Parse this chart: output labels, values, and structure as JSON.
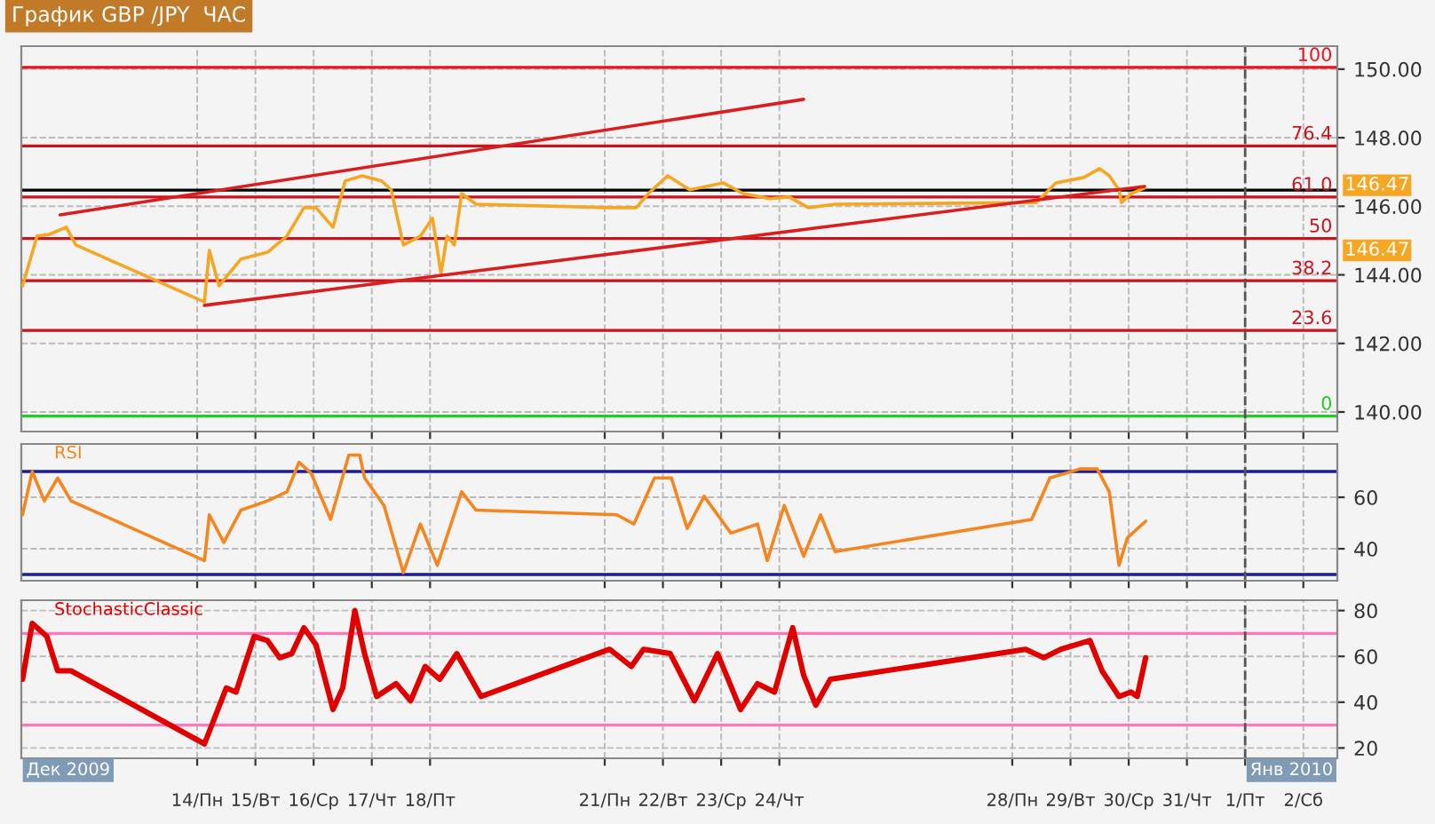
{
  "chart_data": [
    {
      "type": "line",
      "title": "График GBP /JPY  ЧАС",
      "xlim": [
        "2009-12-10T23:30",
        "2010-01-02T14:00"
      ],
      "ylim": [
        139.43,
        150.67
      ],
      "tick_labels": "y",
      "grid": true,
      "marker": "none",
      "line_style": "solid",
      "xticks": [
        "2009-12-14",
        "2009-12-15",
        "2009-12-16",
        "2009-12-17",
        "2009-12-18",
        "2009-12-21",
        "2009-12-22",
        "2009-12-23",
        "2009-12-24",
        "2009-12-28",
        "2009-12-29",
        "2009-12-30",
        "2009-12-31",
        "2010-01-01",
        "2010-01-02"
      ],
      "yticks": [
        {
          "value": 140,
          "label": "140.00"
        },
        {
          "value": 142,
          "label": "142.00"
        },
        {
          "value": 144,
          "label": "144.00"
        },
        {
          "value": 146,
          "label": "146.00"
        },
        {
          "value": 148,
          "label": "148.00"
        },
        {
          "value": 150,
          "label": "150.00"
        }
      ],
      "series": [
        {
          "color": "#f5a623",
          "x": [
            "2009-12-11T00:00",
            "2009-12-11T06:00",
            "2009-12-11T11:00",
            "2009-12-11T18:00",
            "2009-12-11T22:00",
            "2009-12-14T03:00",
            "2009-12-14T05:00",
            "2009-12-14T09:00",
            "2009-12-14T18:00",
            "2009-12-15T05:00",
            "2009-12-15T13:00",
            "2009-12-15T20:00",
            "2009-12-16T01:00",
            "2009-12-16T08:00",
            "2009-12-16T13:00",
            "2009-12-16T20:00",
            "2009-12-17T04:00",
            "2009-12-17T08:00",
            "2009-12-17T13:00",
            "2009-12-17T20:00",
            "2009-12-18T01:00",
            "2009-12-18T04:30",
            "2009-12-18T07:00",
            "2009-12-18T10:00",
            "2009-12-18T13:00",
            "2009-12-18T19:00",
            "2009-12-21T02:00",
            "2009-12-21T13:00",
            "2009-12-21T18:00",
            "2009-12-22T02:00",
            "2009-12-22T11:00",
            "2009-12-23T01:00",
            "2009-12-23T09:00",
            "2009-12-23T20:00",
            "2009-12-24T04:00",
            "2009-12-24T12:00",
            "2009-12-24T23:00",
            "2009-12-28T10:00",
            "2009-12-28T18:00",
            "2009-12-29T05:30",
            "2009-12-29T12:00",
            "2009-12-29T16:00",
            "2009-12-29T20:00",
            "2009-12-29T21:00",
            "2009-12-30T01:00",
            "2009-12-30T06:30"
          ],
          "values": [
            143.68,
            145.13,
            145.18,
            145.39,
            144.87,
            143.21,
            144.72,
            143.68,
            144.46,
            144.66,
            145.13,
            145.96,
            145.96,
            145.39,
            146.74,
            146.89,
            146.74,
            146.48,
            144.87,
            145.13,
            145.65,
            144.04,
            145.13,
            144.87,
            146.37,
            146.06,
            145.96,
            145.96,
            146.37,
            146.89,
            146.48,
            146.68,
            146.37,
            146.22,
            146.27,
            145.96,
            146.06,
            146.11,
            146.68,
            146.84,
            147.1,
            146.89,
            146.48,
            146.11,
            146.37,
            146.53
          ]
        },
        {
          "type": "line",
          "color": "#d81e1e",
          "x": [
            "2009-12-11T15:30",
            "2009-12-24T10:00"
          ],
          "values": [
            145.75,
            149.12
          ]
        },
        {
          "type": "line",
          "color": "#d81e1e",
          "x": [
            "2009-12-14T03:00",
            "2009-12-30T06:30"
          ],
          "values": [
            143.11,
            146.58
          ]
        }
      ],
      "ref_lines": [
        {
          "axis": "y",
          "value": 150.05,
          "color": "#e8141e"
        },
        {
          "axis": "y",
          "value": 147.76,
          "color": "#c8141e"
        },
        {
          "axis": "y",
          "value": 146.27,
          "color": "#c8141e"
        },
        {
          "axis": "y",
          "value": 145.06,
          "color": "#c8141e"
        },
        {
          "axis": "y",
          "value": 143.83,
          "color": "#c8141e"
        },
        {
          "axis": "y",
          "value": 142.38,
          "color": "#c8141e"
        },
        {
          "axis": "y",
          "value": 139.88,
          "color": "#22cc22"
        },
        {
          "axis": "y",
          "value": 146.47,
          "label": "146.47",
          "color": "#000000"
        },
        {
          "axis": "x",
          "value": "2010-01-01",
          "color": "#555555",
          "line_style": "dashed"
        }
      ],
      "annotations": [
        "100",
        "76.4",
        "61.0",
        "50",
        "38.2",
        "23.6",
        "0",
        "146.47"
      ]
    },
    {
      "type": "line",
      "xlim": [
        "2009-12-10T23:30",
        "2010-01-02T14:00"
      ],
      "ylim": [
        27.6,
        80.7
      ],
      "tick_labels": "y",
      "grid": true,
      "marker": "none",
      "line_style": "solid",
      "xticks": [
        "2009-12-14",
        "2009-12-15",
        "2009-12-16",
        "2009-12-17",
        "2009-12-18",
        "2009-12-21",
        "2009-12-22",
        "2009-12-23",
        "2009-12-24",
        "2009-12-28",
        "2009-12-29",
        "2009-12-30",
        "2009-12-31",
        "2010-01-01",
        "2010-01-02"
      ],
      "yticks": [
        40,
        60
      ],
      "series": [
        {
          "name": "RSI",
          "color": "#f5861f",
          "x": [
            "2009-12-11T00:00",
            "2009-12-11T04:00",
            "2009-12-11T09:00",
            "2009-12-11T14:30",
            "2009-12-11T20:00",
            "2009-12-14T03:00",
            "2009-12-14T05:00",
            "2009-12-14T11:00",
            "2009-12-14T18:00",
            "2009-12-15T05:00",
            "2009-12-15T13:00",
            "2009-12-15T18:00",
            "2009-12-15T23:00",
            "2009-12-16T07:00",
            "2009-12-16T14:30",
            "2009-12-16T19:00",
            "2009-12-16T21:00",
            "2009-12-17T05:00",
            "2009-12-17T13:00",
            "2009-12-17T20:00",
            "2009-12-18T03:00",
            "2009-12-18T13:00",
            "2009-12-18T19:00",
            "2009-12-21T05:00",
            "2009-12-21T12:00",
            "2009-12-21T20:30",
            "2009-12-22T03:30",
            "2009-12-22T10:00",
            "2009-12-22T17:00",
            "2009-12-23T04:00",
            "2009-12-23T15:00",
            "2009-12-23T19:00",
            "2009-12-24T02:00",
            "2009-12-24T10:00",
            "2009-12-24T17:00",
            "2009-12-24T23:00",
            "2009-12-28T08:00",
            "2009-12-28T15:30",
            "2009-12-29T04:00",
            "2009-12-29T11:00",
            "2009-12-29T16:00",
            "2009-12-29T20:00",
            "2009-12-29T23:30",
            "2009-12-30T07:00"
          ],
          "values": [
            53.2,
            70,
            58.6,
            67.5,
            58.6,
            35.4,
            53.2,
            42.5,
            55,
            58.6,
            62.1,
            73.6,
            69.3,
            51.4,
            76.4,
            76.4,
            67.5,
            56.8,
            30.7,
            49.6,
            33.6,
            62.1,
            55,
            53.2,
            49.6,
            67.5,
            67.5,
            47.9,
            60.4,
            46.1,
            49.6,
            35.4,
            56.8,
            37.1,
            53.2,
            38.9,
            51.4,
            67.5,
            71,
            71,
            62.1,
            33.6,
            44.3,
            50.7
          ]
        }
      ],
      "ref_lines": [
        {
          "axis": "y",
          "value": 70,
          "color": "#1c1c9c"
        },
        {
          "axis": "y",
          "value": 30,
          "color": "#1c1c9c"
        },
        {
          "axis": "x",
          "value": "2010-01-01",
          "color": "#555555",
          "line_style": "dashed"
        }
      ]
    },
    {
      "type": "line",
      "xlim": [
        "2009-12-10T23:30",
        "2010-01-02T14:00"
      ],
      "ylim": [
        15.5,
        84.5
      ],
      "grid": true,
      "marker": "none",
      "line_style": "solid",
      "xticks": [
        {
          "value": "2009-12-14",
          "label": "14/Пн"
        },
        {
          "value": "2009-12-15",
          "label": "15/Вт"
        },
        {
          "value": "2009-12-16",
          "label": "16/Ср"
        },
        {
          "value": "2009-12-17",
          "label": "17/Чт"
        },
        {
          "value": "2009-12-18",
          "label": "18/Пт"
        },
        {
          "value": "2009-12-21",
          "label": "21/Пн"
        },
        {
          "value": "2009-12-22",
          "label": "22/Вт"
        },
        {
          "value": "2009-12-23",
          "label": "23/Ср"
        },
        {
          "value": "2009-12-24",
          "label": "24/Чт"
        },
        {
          "value": "2009-12-28",
          "label": "28/Пн"
        },
        {
          "value": "2009-12-29",
          "label": "29/Вт"
        },
        {
          "value": "2009-12-30",
          "label": "30/Ср"
        },
        {
          "value": "2009-12-31",
          "label": "31/Чт"
        },
        {
          "value": "2010-01-01",
          "label": "1/Пт"
        },
        {
          "value": "2010-01-02",
          "label": "2/Сб"
        }
      ],
      "yticks": [
        20,
        40,
        60,
        80
      ],
      "series": [
        {
          "name": "StochasticClassic",
          "color": "#e00000",
          "x": [
            "2009-12-11T00:00",
            "2009-12-11T04:00",
            "2009-12-11T10:00",
            "2009-12-11T14:30",
            "2009-12-11T20:00",
            "2009-12-14T03:00",
            "2009-12-14T12:00",
            "2009-12-14T16:00",
            "2009-12-14T23:30",
            "2009-12-15T05:00",
            "2009-12-15T10:00",
            "2009-12-15T15:00",
            "2009-12-15T20:00",
            "2009-12-16T01:00",
            "2009-12-16T08:00",
            "2009-12-16T12:00",
            "2009-12-16T17:00",
            "2009-12-16T21:00",
            "2009-12-17T02:00",
            "2009-12-17T10:00",
            "2009-12-17T16:00",
            "2009-12-17T22:00",
            "2009-12-18T04:00",
            "2009-12-18T11:00",
            "2009-12-18T21:00",
            "2009-12-21T02:00",
            "2009-12-21T11:00",
            "2009-12-21T16:00",
            "2009-12-22T03:00",
            "2009-12-22T13:00",
            "2009-12-22T22:30",
            "2009-12-23T08:00",
            "2009-12-23T15:00",
            "2009-12-23T22:00",
            "2009-12-24T05:30",
            "2009-12-24T10:00",
            "2009-12-24T15:00",
            "2009-12-24T21:00",
            "2009-12-28T05:30",
            "2009-12-28T13:00",
            "2009-12-28T20:00",
            "2009-12-29T08:00",
            "2009-12-29T13:00",
            "2009-12-29T20:00",
            "2009-12-30T01:00",
            "2009-12-30T03:30",
            "2009-12-30T07:00"
          ],
          "values": [
            50,
            74.4,
            68.7,
            53.7,
            53.7,
            21.8,
            46.2,
            44.4,
            68.7,
            66.9,
            59.4,
            61.2,
            72.5,
            65,
            36.8,
            46.2,
            80,
            61.2,
            42.5,
            48.1,
            40.6,
            55.6,
            50,
            61.2,
            42.5,
            63.1,
            55.6,
            63.1,
            61.2,
            40.6,
            61.2,
            36.8,
            48.1,
            44.4,
            72.5,
            51.8,
            38.7,
            50,
            63.1,
            59.4,
            63.1,
            66.9,
            53.7,
            42.5,
            44.4,
            42.5,
            59.4
          ]
        }
      ],
      "ref_lines": [
        {
          "axis": "y",
          "value": 70,
          "color": "#ff77bb"
        },
        {
          "axis": "y",
          "value": 30,
          "color": "#ff77bb"
        },
        {
          "axis": "x",
          "value": "2010-01-01",
          "label": "Янв 2010",
          "color": "#555555",
          "line_style": "dashed"
        }
      ],
      "annotations": [
        "Дек 2009"
      ]
    }
  ]
}
